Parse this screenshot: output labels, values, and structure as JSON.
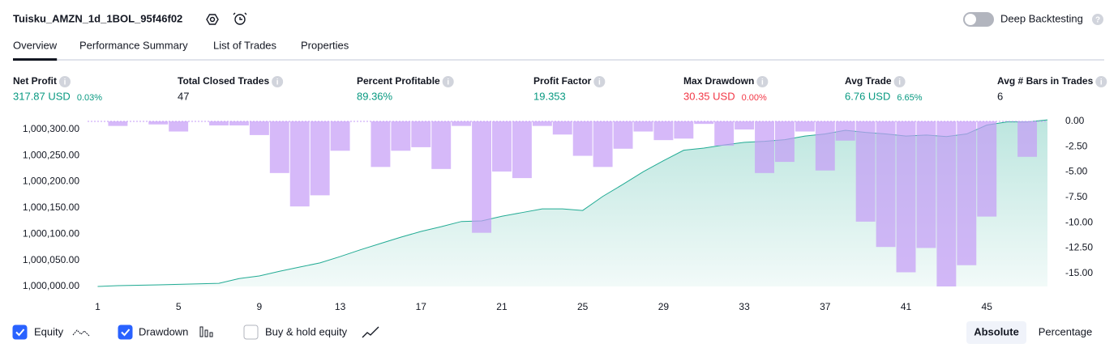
{
  "header": {
    "title": "Tuisku_AMZN_1d_1BOL_95f46f02",
    "deep_backtesting": {
      "label": "Deep Backtesting",
      "on": false
    }
  },
  "tabs": [
    "Overview",
    "Performance Summary",
    "List of Trades",
    "Properties"
  ],
  "active_tab_index": 0,
  "stats": [
    {
      "label": "Net Profit",
      "value": "317.87 USD",
      "change": "0.03%",
      "color": "#089981"
    },
    {
      "label": "Total Closed Trades",
      "value": "47",
      "color": "#131722"
    },
    {
      "label": "Percent Profitable",
      "value": "89.36%",
      "color": "#089981"
    },
    {
      "label": "Profit Factor",
      "value": "19.353",
      "color": "#089981"
    },
    {
      "label": "Max Drawdown",
      "value": "30.35 USD",
      "change": "0.00%",
      "color": "#f23645"
    },
    {
      "label": "Avg Trade",
      "value": "6.76 USD",
      "change": "6.65%",
      "color": "#089981"
    },
    {
      "label": "Avg # Bars in Trades",
      "value": "6",
      "color": "#131722"
    }
  ],
  "chart_data": {
    "type": "line",
    "xlim": [
      0.5,
      48
    ],
    "xticks": [
      1,
      5,
      9,
      13,
      17,
      21,
      25,
      29,
      33,
      37,
      41,
      45
    ],
    "ylim": [
      1000000,
      1000315
    ],
    "yticks": [
      {
        "value": 1000000,
        "label": "1,000,000.00"
      },
      {
        "value": 1000050,
        "label": "1,000,050.00"
      },
      {
        "value": 1000100,
        "label": "1,000,100.00"
      },
      {
        "value": 1000150,
        "label": "1,000,150.00"
      },
      {
        "value": 1000200,
        "label": "1,000,200.00"
      },
      {
        "value": 1000250,
        "label": "1,000,250.00"
      },
      {
        "value": 1000300,
        "label": "1,000,300.00"
      }
    ],
    "y2lim": [
      -16.3,
      0
    ],
    "y2ticks": [
      {
        "value": 0,
        "label": "0.00"
      },
      {
        "value": -2.5,
        "label": "-2.50"
      },
      {
        "value": -5,
        "label": "-5.00"
      },
      {
        "value": -7.5,
        "label": "-7.50"
      },
      {
        "value": -10,
        "label": "-10.00"
      },
      {
        "value": -12.5,
        "label": "-12.50"
      },
      {
        "value": -15,
        "label": "-15.00"
      }
    ],
    "series": [
      {
        "name": "Equity",
        "color": "#22ab94",
        "visible": true,
        "x": [
          1,
          2,
          3,
          4,
          5,
          6,
          7,
          8,
          9,
          10,
          11,
          12,
          13,
          14,
          15,
          16,
          17,
          18,
          19,
          20,
          21,
          22,
          23,
          24,
          25,
          26,
          27,
          28,
          29,
          30,
          31,
          32,
          33,
          34,
          35,
          36,
          37,
          38,
          39,
          40,
          41,
          42,
          43,
          44,
          45,
          46,
          47,
          48
        ],
        "values": [
          1000000,
          1000001.5,
          1000002.3,
          1000003,
          1000004,
          1000005,
          1000006,
          1000015,
          1000020,
          1000029,
          1000037,
          1000045,
          1000057,
          1000070,
          1000082,
          1000094,
          1000105,
          1000114,
          1000124,
          1000125,
          1000134,
          1000141,
          1000148,
          1000148,
          1000145,
          1000172,
          1000195,
          1000219,
          1000240,
          1000260,
          1000264,
          1000270,
          1000275,
          1000277,
          1000280,
          1000287,
          1000291,
          1000298,
          1000294,
          1000291,
          1000287,
          1000289,
          1000286,
          1000291,
          1000308,
          1000314,
          1000314,
          1000317.87
        ]
      },
      {
        "name": "Drawdown",
        "color": "#c59bf7",
        "axis": "y2",
        "type": "bar",
        "visible": true,
        "x": [
          1,
          2,
          3,
          4,
          5,
          6,
          7,
          8,
          9,
          10,
          11,
          12,
          13,
          14,
          15,
          16,
          17,
          18,
          19,
          20,
          21,
          22,
          23,
          24,
          25,
          26,
          27,
          28,
          29,
          30,
          31,
          32,
          33,
          34,
          35,
          36,
          37,
          38,
          39,
          40,
          41,
          42,
          43,
          44,
          45,
          46,
          47
        ],
        "values": [
          0,
          -0.45,
          0,
          -0.3,
          -1,
          0,
          -0.4,
          -0.4,
          -1.35,
          -5.1,
          -8.4,
          -7.3,
          -2.9,
          0,
          -4.5,
          -2.9,
          -2.55,
          -4.7,
          -0.45,
          -11,
          -4.95,
          -5.6,
          -0.45,
          -1.3,
          -3.4,
          -4.5,
          -2.7,
          -1,
          -1.85,
          -1.7,
          -0.25,
          -2.4,
          -0.8,
          -5.1,
          -4,
          -1,
          -4.85,
          -1.9,
          -9.9,
          -12.4,
          -14.9,
          -12.5,
          -16.3,
          -14.2,
          -9.4,
          0,
          -3.5
        ]
      }
    ]
  },
  "controls": {
    "buy_hold": "Buy & hold equity",
    "buy_hold_checked": false,
    "modes": [
      "Absolute",
      "Percentage"
    ],
    "active_mode_index": 0
  }
}
